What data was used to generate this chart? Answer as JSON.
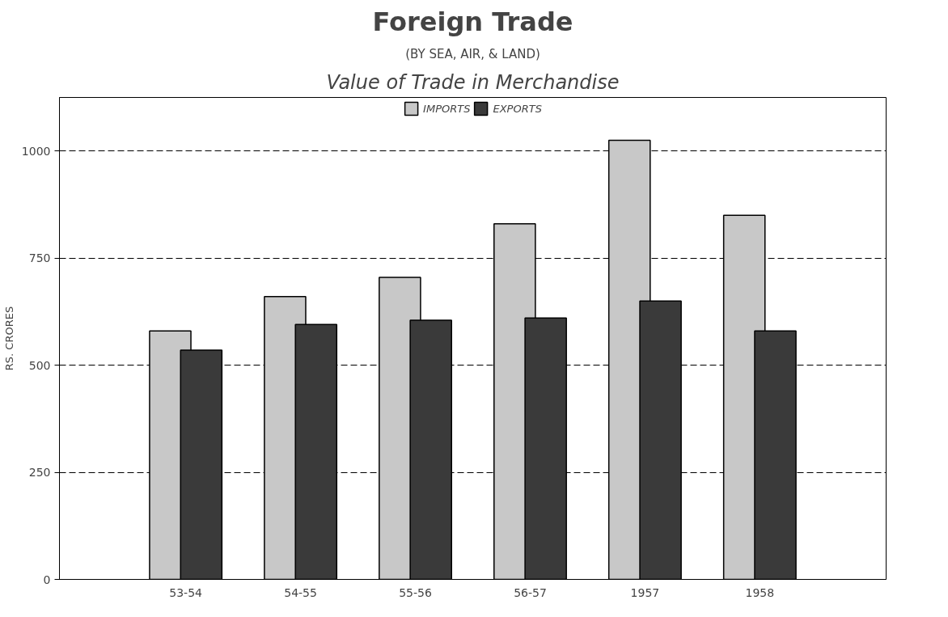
{
  "chart_data": {
    "type": "bar",
    "title": "Foreign Trade",
    "subtitle": "(BY SEA, AIR, & LAND)",
    "annotations": [
      "Value of Trade in Merchandise"
    ],
    "ylabel": "RS. CRORES",
    "categories": [
      "53-54",
      "54-55",
      "55-56",
      "56-57",
      "1957",
      "1958"
    ],
    "series": [
      {
        "name": "IMPORTS",
        "color": "#c8c8c8",
        "values": [
          580,
          660,
          705,
          830,
          1025,
          850
        ]
      },
      {
        "name": "EXPORTS",
        "color": "#3a3a3a",
        "values": [
          535,
          595,
          605,
          610,
          650,
          580
        ]
      }
    ],
    "ylim": [
      0,
      1125
    ],
    "yticks": [
      0,
      250,
      500,
      750,
      1000
    ],
    "grid": "y",
    "legend": "top"
  }
}
